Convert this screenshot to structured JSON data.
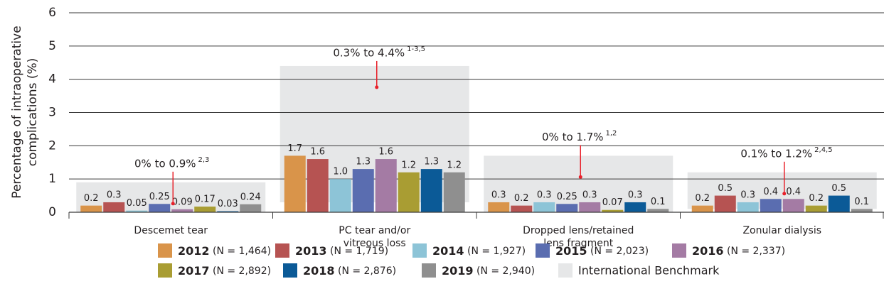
{
  "chart_data": {
    "type": "bar",
    "ylabel": "Percentage of intraoperative complications (%)",
    "categories": [
      "Descemet tear",
      "PC tear and/or\nvitreous loss",
      "Dropped lens/retained\nlens fragment",
      "Zonular dialysis"
    ],
    "ylim": [
      0,
      6
    ],
    "yticks": [
      0,
      1,
      2,
      3,
      4,
      5,
      6
    ],
    "grid": true,
    "series": [
      {
        "name": "2012 (N = 1,464)",
        "color": "#d9944a",
        "values": [
          0.2,
          1.7,
          0.3,
          0.2
        ]
      },
      {
        "name": "2013 (N = 1,719)",
        "color": "#b65352",
        "values": [
          0.3,
          1.6,
          0.2,
          0.5
        ]
      },
      {
        "name": "2014 (N = 1,927)",
        "color": "#8dc4d7",
        "values": [
          0.05,
          1.0,
          0.3,
          0.3
        ],
        "value_labels": [
          "0.05",
          "1.0",
          "0.3",
          "0.3"
        ]
      },
      {
        "name": "2015 (N = 2,023)",
        "color": "#5a6db0",
        "values": [
          0.25,
          1.3,
          0.25,
          0.4
        ]
      },
      {
        "name": "2016 (N = 2,337)",
        "color": "#a47ba4",
        "values": [
          0.09,
          1.6,
          0.3,
          0.4
        ]
      },
      {
        "name": "2017 (N = 2,892)",
        "color": "#a99d33",
        "values": [
          0.17,
          1.2,
          0.07,
          0.2
        ]
      },
      {
        "name": "2018 (N = 2,876)",
        "color": "#0b5a97",
        "values": [
          0.03,
          1.3,
          0.3,
          0.5
        ]
      },
      {
        "name": "2019 (N = 2,940)",
        "color": "#8f8f8f",
        "values": [
          0.24,
          1.2,
          0.1,
          0.1
        ]
      }
    ],
    "benchmark": {
      "name": "International Benchmark",
      "color": "#e6e7e8",
      "ranges": [
        {
          "label": "0% to 0.9%",
          "superscript": "2,3",
          "low": 0,
          "high": 0.9
        },
        {
          "label": "0.3% to 4.4%",
          "superscript": "1-3,5",
          "low": 0.3,
          "high": 4.4
        },
        {
          "label": "0% to 1.7%",
          "superscript": "1,2",
          "low": 0,
          "high": 1.7
        },
        {
          "label": "0.1% to 1.2%",
          "superscript": "2,4,5",
          "low": 0.1,
          "high": 1.2
        }
      ]
    },
    "annotation_color": "#e8202a"
  }
}
